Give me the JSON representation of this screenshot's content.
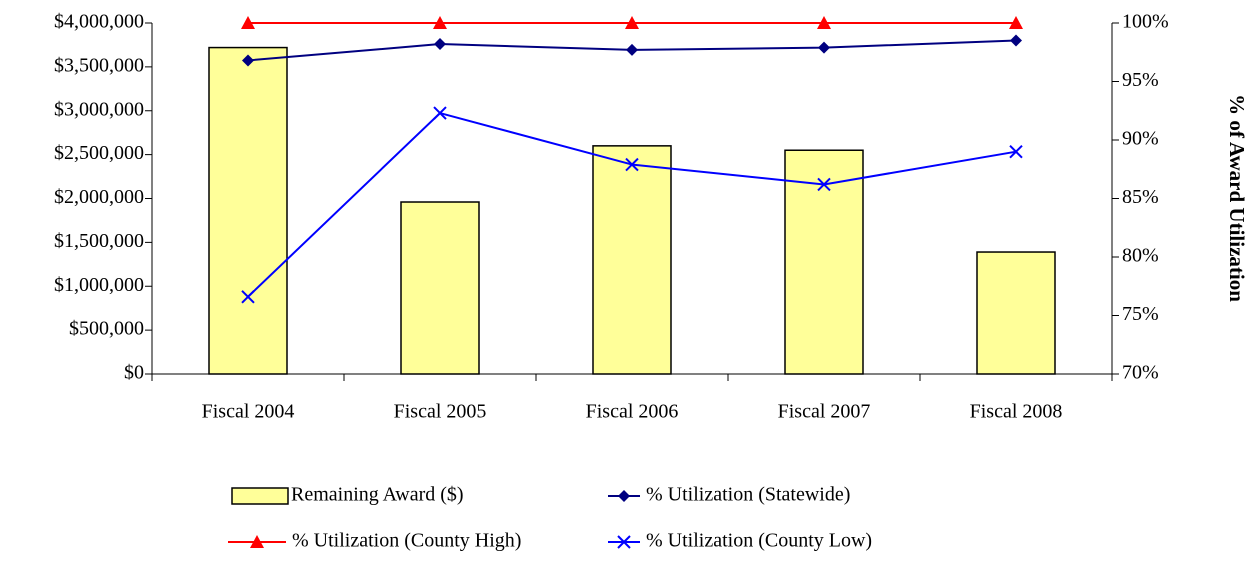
{
  "chart_data": {
    "type": "bar",
    "y2label": "% of Award Utilization",
    "categories": [
      "Fiscal 2004",
      "Fiscal 2005",
      "Fiscal 2006",
      "Fiscal 2007",
      "Fiscal 2008"
    ],
    "series": [
      {
        "name": "Remaining Award ($)",
        "type": "bar",
        "color": "#ffff99",
        "values": [
          3720000,
          1960000,
          2600000,
          2550000,
          1390000
        ]
      },
      {
        "name": "% Utilization (Statewide)",
        "type": "line",
        "axis": "y2",
        "marker": "diamond",
        "color": "#000080",
        "values": [
          96.8,
          98.2,
          97.7,
          97.9,
          98.5
        ]
      },
      {
        "name": "% Utilization (County High)",
        "type": "line",
        "axis": "y2",
        "marker": "triangle",
        "color": "#ff0000",
        "values": [
          100,
          100,
          100,
          100,
          100
        ]
      },
      {
        "name": "% Utilization (County Low)",
        "type": "line",
        "axis": "y2",
        "marker": "x",
        "color": "#0000ff",
        "values": [
          76.6,
          92.3,
          87.9,
          86.2,
          89.0
        ]
      }
    ],
    "ylim": [
      0,
      4000000
    ],
    "yticks": [
      {
        "value": 0,
        "label": "$0"
      },
      {
        "value": 500000,
        "label": "$500,000"
      },
      {
        "value": 1000000,
        "label": "$1,000,000"
      },
      {
        "value": 1500000,
        "label": "$1,500,000"
      },
      {
        "value": 2000000,
        "label": "$2,000,000"
      },
      {
        "value": 2500000,
        "label": "$2,500,000"
      },
      {
        "value": 3000000,
        "label": "$3,000,000"
      },
      {
        "value": 3500000,
        "label": "$3,500,000"
      },
      {
        "value": 4000000,
        "label": "$4,000,000"
      }
    ],
    "y2lim": [
      70,
      100
    ],
    "y2ticks": [
      {
        "value": 70,
        "label": "70%"
      },
      {
        "value": 75,
        "label": "75%"
      },
      {
        "value": 80,
        "label": "80%"
      },
      {
        "value": 85,
        "label": "85%"
      },
      {
        "value": 90,
        "label": "90%"
      },
      {
        "value": 95,
        "label": "95%"
      },
      {
        "value": 100,
        "label": "100%"
      }
    ],
    "grid": false
  }
}
